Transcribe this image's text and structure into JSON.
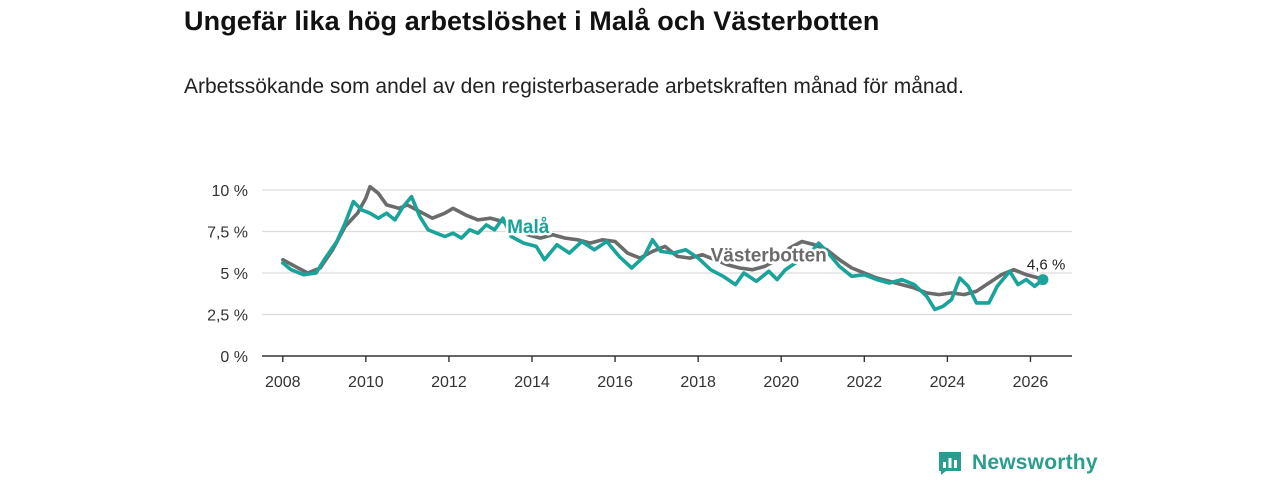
{
  "title": "Ungefär lika hög arbetslöshet i Malå och Västerbotten",
  "subtitle": "Arbetssökande som andel av den registerbaserade arbetskraften månad för månad.",
  "brand": {
    "name": "Newsworthy",
    "color": "#2a9d8f"
  },
  "chart_data": {
    "type": "line",
    "ylim": [
      0,
      10
    ],
    "xlim": [
      2007.5,
      2027
    ],
    "y_ticks": [
      0,
      2.5,
      5,
      7.5,
      10
    ],
    "y_tick_labels": [
      "0 %",
      "2,5 %",
      "5 %",
      "7,5 %",
      "10 %"
    ],
    "x_ticks": [
      2008,
      2010,
      2012,
      2014,
      2016,
      2018,
      2020,
      2022,
      2024,
      2026
    ],
    "x_tick_labels": [
      "2008",
      "2010",
      "2012",
      "2014",
      "2016",
      "2018",
      "2020",
      "2022",
      "2024",
      "2026"
    ],
    "grid": true,
    "series": [
      {
        "name": "Västerbotten",
        "color": "#6b6b6b",
        "label": "Västerbotten",
        "points": [
          [
            2008.0,
            5.8
          ],
          [
            2008.3,
            5.4
          ],
          [
            2008.6,
            5.0
          ],
          [
            2008.9,
            5.3
          ],
          [
            2009.2,
            6.4
          ],
          [
            2009.5,
            7.8
          ],
          [
            2009.8,
            8.6
          ],
          [
            2010.0,
            9.5
          ],
          [
            2010.1,
            10.2
          ],
          [
            2010.3,
            9.8
          ],
          [
            2010.5,
            9.1
          ],
          [
            2010.8,
            8.9
          ],
          [
            2011.0,
            9.1
          ],
          [
            2011.3,
            8.7
          ],
          [
            2011.6,
            8.3
          ],
          [
            2011.9,
            8.6
          ],
          [
            2012.1,
            8.9
          ],
          [
            2012.4,
            8.5
          ],
          [
            2012.7,
            8.2
          ],
          [
            2013.0,
            8.3
          ],
          [
            2013.3,
            8.1
          ],
          [
            2013.6,
            7.7
          ],
          [
            2013.9,
            7.3
          ],
          [
            2014.2,
            7.1
          ],
          [
            2014.5,
            7.3
          ],
          [
            2014.8,
            7.1
          ],
          [
            2015.1,
            7.0
          ],
          [
            2015.4,
            6.8
          ],
          [
            2015.7,
            7.0
          ],
          [
            2016.0,
            6.9
          ],
          [
            2016.3,
            6.2
          ],
          [
            2016.6,
            5.9
          ],
          [
            2016.9,
            6.3
          ],
          [
            2017.2,
            6.6
          ],
          [
            2017.5,
            6.0
          ],
          [
            2017.8,
            5.9
          ],
          [
            2018.1,
            6.1
          ],
          [
            2018.4,
            5.8
          ],
          [
            2018.7,
            5.5
          ],
          [
            2019.0,
            5.3
          ],
          [
            2019.3,
            5.2
          ],
          [
            2019.6,
            5.4
          ],
          [
            2019.9,
            5.8
          ],
          [
            2020.2,
            6.5
          ],
          [
            2020.5,
            6.9
          ],
          [
            2020.8,
            6.7
          ],
          [
            2021.1,
            6.4
          ],
          [
            2021.4,
            5.8
          ],
          [
            2021.7,
            5.3
          ],
          [
            2022.0,
            5.0
          ],
          [
            2022.3,
            4.7
          ],
          [
            2022.6,
            4.5
          ],
          [
            2022.9,
            4.3
          ],
          [
            2023.2,
            4.1
          ],
          [
            2023.5,
            3.8
          ],
          [
            2023.8,
            3.7
          ],
          [
            2024.1,
            3.8
          ],
          [
            2024.4,
            3.7
          ],
          [
            2024.7,
            3.9
          ],
          [
            2025.0,
            4.4
          ],
          [
            2025.3,
            4.9
          ],
          [
            2025.6,
            5.2
          ],
          [
            2025.9,
            4.9
          ],
          [
            2026.2,
            4.7
          ]
        ]
      },
      {
        "name": "Malå",
        "color": "#1aa39a",
        "label": "Malå",
        "end_label": "4,6 %",
        "points": [
          [
            2008.0,
            5.6
          ],
          [
            2008.2,
            5.2
          ],
          [
            2008.5,
            4.9
          ],
          [
            2008.8,
            5.0
          ],
          [
            2009.0,
            5.8
          ],
          [
            2009.3,
            6.9
          ],
          [
            2009.5,
            8.0
          ],
          [
            2009.7,
            9.3
          ],
          [
            2009.9,
            8.8
          ],
          [
            2010.1,
            8.6
          ],
          [
            2010.3,
            8.3
          ],
          [
            2010.5,
            8.6
          ],
          [
            2010.7,
            8.2
          ],
          [
            2010.9,
            9.0
          ],
          [
            2011.1,
            9.6
          ],
          [
            2011.3,
            8.4
          ],
          [
            2011.5,
            7.6
          ],
          [
            2011.7,
            7.4
          ],
          [
            2011.9,
            7.2
          ],
          [
            2012.1,
            7.4
          ],
          [
            2012.3,
            7.1
          ],
          [
            2012.5,
            7.6
          ],
          [
            2012.7,
            7.4
          ],
          [
            2012.9,
            7.9
          ],
          [
            2013.1,
            7.6
          ],
          [
            2013.3,
            8.3
          ],
          [
            2013.5,
            7.2
          ],
          [
            2013.8,
            6.8
          ],
          [
            2014.1,
            6.6
          ],
          [
            2014.3,
            5.8
          ],
          [
            2014.6,
            6.7
          ],
          [
            2014.9,
            6.2
          ],
          [
            2015.2,
            6.9
          ],
          [
            2015.5,
            6.4
          ],
          [
            2015.8,
            6.9
          ],
          [
            2016.1,
            6.0
          ],
          [
            2016.4,
            5.3
          ],
          [
            2016.7,
            6.0
          ],
          [
            2016.9,
            7.0
          ],
          [
            2017.1,
            6.3
          ],
          [
            2017.4,
            6.2
          ],
          [
            2017.7,
            6.4
          ],
          [
            2018.0,
            5.9
          ],
          [
            2018.3,
            5.2
          ],
          [
            2018.6,
            4.8
          ],
          [
            2018.9,
            4.3
          ],
          [
            2019.1,
            5.0
          ],
          [
            2019.4,
            4.5
          ],
          [
            2019.7,
            5.1
          ],
          [
            2019.9,
            4.6
          ],
          [
            2020.1,
            5.2
          ],
          [
            2020.4,
            5.7
          ],
          [
            2020.7,
            6.2
          ],
          [
            2020.9,
            6.8
          ],
          [
            2021.1,
            6.3
          ],
          [
            2021.4,
            5.4
          ],
          [
            2021.7,
            4.8
          ],
          [
            2022.0,
            4.9
          ],
          [
            2022.3,
            4.6
          ],
          [
            2022.6,
            4.4
          ],
          [
            2022.9,
            4.6
          ],
          [
            2023.2,
            4.3
          ],
          [
            2023.5,
            3.6
          ],
          [
            2023.7,
            2.8
          ],
          [
            2023.9,
            3.0
          ],
          [
            2024.1,
            3.4
          ],
          [
            2024.3,
            4.7
          ],
          [
            2024.5,
            4.2
          ],
          [
            2024.7,
            3.2
          ],
          [
            2025.0,
            3.2
          ],
          [
            2025.2,
            4.2
          ],
          [
            2025.5,
            5.1
          ],
          [
            2025.7,
            4.3
          ],
          [
            2025.9,
            4.6
          ],
          [
            2026.1,
            4.2
          ],
          [
            2026.3,
            4.6
          ]
        ]
      }
    ]
  }
}
